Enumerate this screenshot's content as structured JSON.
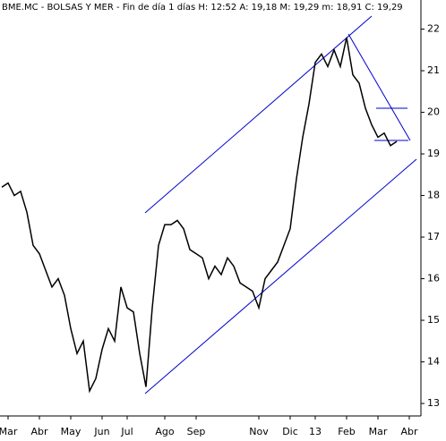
{
  "chart_data": {
    "type": "line",
    "title": "BME.MC - BOLSAS Y MER - Fin de día 1 días H: 12:52  A: 19,18  M: 19,29  m: 18,91  C: 19,29",
    "categories": [
      null,
      "Mar",
      null,
      null,
      null,
      null,
      "Abr",
      null,
      null,
      null,
      null,
      "May",
      null,
      null,
      null,
      null,
      "Jun",
      null,
      null,
      null,
      "Jul",
      null,
      null,
      null,
      null,
      null,
      "Ago",
      null,
      null,
      null,
      null,
      "Sep",
      null,
      null,
      null,
      null,
      null,
      null,
      null,
      null,
      null,
      "Nov",
      null,
      null,
      null,
      null,
      "Dic",
      null,
      null,
      null,
      "13",
      null,
      null,
      null,
      null,
      "Feb",
      null,
      null,
      null,
      null,
      "Mar",
      null,
      null,
      null,
      null,
      "Abr"
    ],
    "series": [
      {
        "name": "BME.MC",
        "color": "#000000",
        "values": [
          18.2,
          18.3,
          18.0,
          18.1,
          17.6,
          16.8,
          16.6,
          16.2,
          15.8,
          16.0,
          15.6,
          14.8,
          14.2,
          14.5,
          13.3,
          13.6,
          14.3,
          14.8,
          14.5,
          15.8,
          15.3,
          15.2,
          14.2,
          13.4,
          15.3,
          16.8,
          17.3,
          17.3,
          17.4,
          17.2,
          16.7,
          16.6,
          16.5,
          16.0,
          16.3,
          16.1,
          16.5,
          16.3,
          15.9,
          15.8,
          15.7,
          15.3,
          16.0,
          16.2,
          16.4,
          16.8,
          17.2,
          18.4,
          19.4,
          20.2,
          21.2,
          21.4,
          21.1,
          21.5,
          21.1,
          21.8,
          20.9,
          20.7,
          20.1,
          19.7,
          19.4,
          19.5,
          19.2,
          19.3,
          null,
          null
        ]
      }
    ],
    "ylim": [
      12.7,
      22.7
    ],
    "yticks": [
      13,
      14,
      15,
      16,
      17,
      18,
      19,
      20,
      21,
      22
    ],
    "grid": false
  }
}
